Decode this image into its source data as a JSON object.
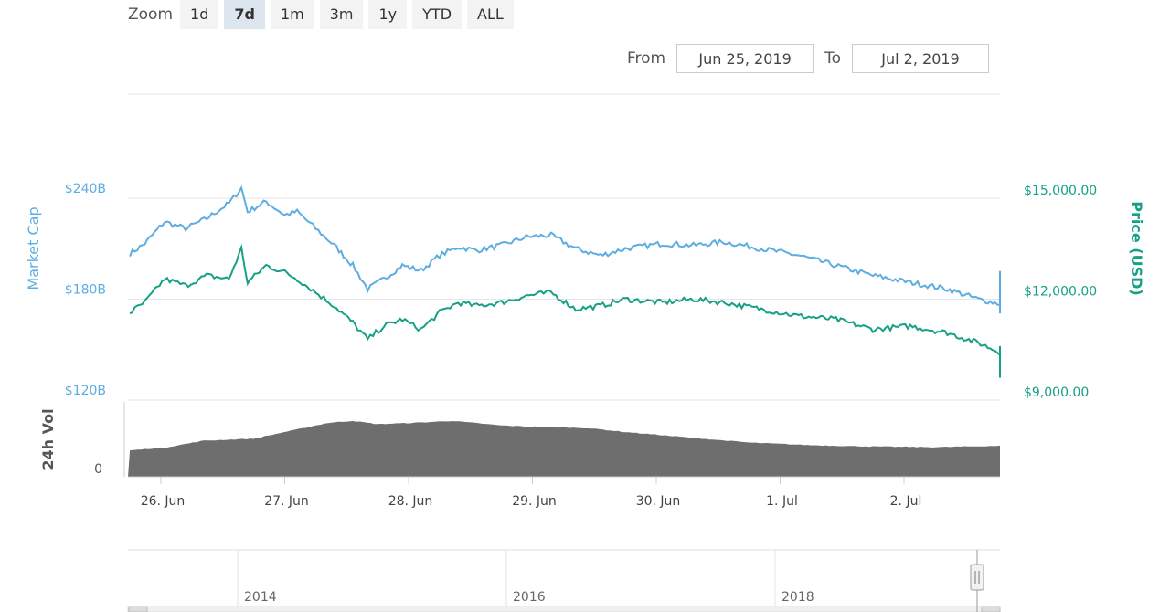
{
  "zoom": {
    "label": "Zoom",
    "buttons": [
      "1d",
      "7d",
      "1m",
      "3m",
      "1y",
      "YTD",
      "ALL"
    ],
    "active": "7d"
  },
  "range": {
    "from_label": "From",
    "from_value": "Jun 25, 2019",
    "to_label": "To",
    "to_value": "Jul 2, 2019"
  },
  "colors": {
    "market_cap": "#5dade2",
    "price": "#16a085",
    "volume": "#6e6e6e",
    "grid": "#e6e6e6"
  },
  "chart_data": {
    "type": "line",
    "x": [
      "26. Jun",
      "27. Jun",
      "28. Jun",
      "29. Jun",
      "30. Jun",
      "1. Jul",
      "2. Jul"
    ],
    "axes": {
      "left": {
        "title": "Market Cap",
        "ticks": [
          "$240B",
          "$180B",
          "$120B"
        ],
        "range": [
          120,
          240
        ],
        "unit": "B USD"
      },
      "right": {
        "title": "Price (USD)",
        "ticks": [
          "$15,000.00",
          "$12,000.00",
          "$9,000.00"
        ],
        "range": [
          9000,
          15000
        ]
      },
      "volume": {
        "title": "24h Vol",
        "ticks": [
          "0"
        ]
      }
    },
    "series": [
      {
        "name": "Market Cap",
        "axis": "left",
        "points": [
          {
            "t": 0.0,
            "v": 207
          },
          {
            "t": 0.12,
            "v": 213
          },
          {
            "t": 0.28,
            "v": 226
          },
          {
            "t": 0.45,
            "v": 222
          },
          {
            "t": 0.62,
            "v": 228
          },
          {
            "t": 0.8,
            "v": 237
          },
          {
            "t": 0.9,
            "v": 246
          },
          {
            "t": 0.95,
            "v": 232
          },
          {
            "t": 1.1,
            "v": 238
          },
          {
            "t": 1.25,
            "v": 230
          },
          {
            "t": 1.35,
            "v": 232
          },
          {
            "t": 1.5,
            "v": 222
          },
          {
            "t": 1.65,
            "v": 212
          },
          {
            "t": 1.8,
            "v": 200
          },
          {
            "t": 1.92,
            "v": 186
          },
          {
            "t": 2.05,
            "v": 192
          },
          {
            "t": 2.2,
            "v": 200
          },
          {
            "t": 2.35,
            "v": 197
          },
          {
            "t": 2.5,
            "v": 206
          },
          {
            "t": 2.65,
            "v": 211
          },
          {
            "t": 2.8,
            "v": 209
          },
          {
            "t": 3.0,
            "v": 212
          },
          {
            "t": 3.2,
            "v": 217
          },
          {
            "t": 3.4,
            "v": 218
          },
          {
            "t": 3.6,
            "v": 210
          },
          {
            "t": 3.8,
            "v": 206
          },
          {
            "t": 4.0,
            "v": 210
          },
          {
            "t": 4.3,
            "v": 213
          },
          {
            "t": 4.55,
            "v": 212
          },
          {
            "t": 4.8,
            "v": 214
          },
          {
            "t": 5.1,
            "v": 210
          },
          {
            "t": 5.4,
            "v": 206
          },
          {
            "t": 5.7,
            "v": 200
          },
          {
            "t": 6.0,
            "v": 194
          },
          {
            "t": 6.3,
            "v": 190
          },
          {
            "t": 6.6,
            "v": 186
          },
          {
            "t": 6.85,
            "v": 180
          },
          {
            "t": 7.1,
            "v": 176
          },
          {
            "t": 7.3,
            "v": 172
          },
          {
            "t": 7.6,
            "v": 174
          },
          {
            "t": 7.85,
            "v": 176
          },
          {
            "t": 8.0,
            "v": 179
          },
          {
            "t": 8.2,
            "v": 185
          },
          {
            "t": 8.4,
            "v": 188
          },
          {
            "t": 8.6,
            "v": 193
          },
          {
            "t": 8.8,
            "v": 196
          },
          {
            "t": 9.0,
            "v": 193
          }
        ]
      },
      {
        "name": "Price (USD)",
        "axis": "right",
        "points": [
          {
            "t": 0.0,
            "v": 11600
          },
          {
            "t": 0.12,
            "v": 11900
          },
          {
            "t": 0.28,
            "v": 12600
          },
          {
            "t": 0.45,
            "v": 12400
          },
          {
            "t": 0.62,
            "v": 12700
          },
          {
            "t": 0.8,
            "v": 12600
          },
          {
            "t": 0.9,
            "v": 13500
          },
          {
            "t": 0.95,
            "v": 12500
          },
          {
            "t": 1.1,
            "v": 13000
          },
          {
            "t": 1.25,
            "v": 12800
          },
          {
            "t": 1.35,
            "v": 12600
          },
          {
            "t": 1.5,
            "v": 12200
          },
          {
            "t": 1.65,
            "v": 11800
          },
          {
            "t": 1.8,
            "v": 11300
          },
          {
            "t": 1.92,
            "v": 10800
          },
          {
            "t": 2.05,
            "v": 11200
          },
          {
            "t": 2.2,
            "v": 11400
          },
          {
            "t": 2.35,
            "v": 11100
          },
          {
            "t": 2.5,
            "v": 11600
          },
          {
            "t": 2.65,
            "v": 11900
          },
          {
            "t": 2.8,
            "v": 11800
          },
          {
            "t": 3.0,
            "v": 11900
          },
          {
            "t": 3.2,
            "v": 12100
          },
          {
            "t": 3.4,
            "v": 12200
          },
          {
            "t": 3.6,
            "v": 11700
          },
          {
            "t": 3.8,
            "v": 11800
          },
          {
            "t": 4.0,
            "v": 12000
          },
          {
            "t": 4.3,
            "v": 11900
          },
          {
            "t": 4.55,
            "v": 12000
          },
          {
            "t": 4.8,
            "v": 11900
          },
          {
            "t": 5.1,
            "v": 11700
          },
          {
            "t": 5.4,
            "v": 11500
          },
          {
            "t": 5.7,
            "v": 11400
          },
          {
            "t": 6.0,
            "v": 11100
          },
          {
            "t": 6.3,
            "v": 11200
          },
          {
            "t": 6.6,
            "v": 11000
          },
          {
            "t": 6.85,
            "v": 10700
          },
          {
            "t": 7.1,
            "v": 10300
          },
          {
            "t": 7.3,
            "v": 10200
          },
          {
            "t": 7.6,
            "v": 10400
          },
          {
            "t": 7.85,
            "v": 10000
          },
          {
            "t": 8.0,
            "v": 9700
          },
          {
            "t": 8.2,
            "v": 9800
          },
          {
            "t": 8.4,
            "v": 9900
          },
          {
            "t": 8.6,
            "v": 10300
          },
          {
            "t": 8.8,
            "v": 10500
          },
          {
            "t": 9.0,
            "v": 10600
          }
        ]
      },
      {
        "name": "24h Vol",
        "axis": "volume",
        "type": "area",
        "points": [
          {
            "t": 0.0,
            "v": 0.4
          },
          {
            "t": 0.3,
            "v": 0.45
          },
          {
            "t": 0.6,
            "v": 0.55
          },
          {
            "t": 1.0,
            "v": 0.58
          },
          {
            "t": 1.3,
            "v": 0.7
          },
          {
            "t": 1.6,
            "v": 0.82
          },
          {
            "t": 1.8,
            "v": 0.85
          },
          {
            "t": 2.0,
            "v": 0.8
          },
          {
            "t": 2.3,
            "v": 0.82
          },
          {
            "t": 2.6,
            "v": 0.85
          },
          {
            "t": 3.0,
            "v": 0.78
          },
          {
            "t": 3.3,
            "v": 0.76
          },
          {
            "t": 3.7,
            "v": 0.74
          },
          {
            "t": 4.0,
            "v": 0.68
          },
          {
            "t": 4.5,
            "v": 0.6
          },
          {
            "t": 5.0,
            "v": 0.52
          },
          {
            "t": 5.5,
            "v": 0.48
          },
          {
            "t": 6.0,
            "v": 0.46
          },
          {
            "t": 6.5,
            "v": 0.45
          },
          {
            "t": 7.0,
            "v": 0.47
          },
          {
            "t": 7.5,
            "v": 0.46
          },
          {
            "t": 8.0,
            "v": 0.5
          },
          {
            "t": 8.5,
            "v": 0.54
          },
          {
            "t": 9.0,
            "v": 0.54
          }
        ]
      }
    ],
    "navigator": {
      "labels": [
        "2014",
        "2016",
        "2018"
      ]
    },
    "grid": true,
    "legend": "none"
  }
}
